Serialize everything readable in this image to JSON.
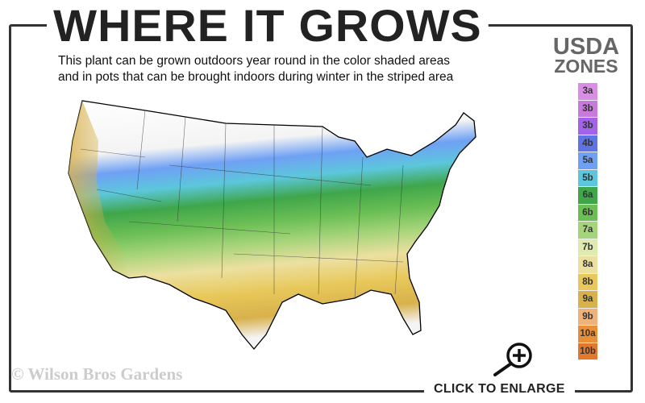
{
  "title": "WHERE IT GROWS",
  "subtitle": {
    "line1": "This plant can be grown outdoors year round in the color shaded areas",
    "line2": "and in pots that can be brought indoors during winter in the striped area"
  },
  "legend": {
    "title_line1": "USDA",
    "title_line2": "ZONES",
    "zones": [
      {
        "label": "3a",
        "color": "#d98ee6"
      },
      {
        "label": "3b",
        "color": "#c77ad9"
      },
      {
        "label": "3b",
        "color": "#a262ea"
      },
      {
        "label": "4b",
        "color": "#5d73e6"
      },
      {
        "label": "5a",
        "color": "#6fa0f4"
      },
      {
        "label": "5b",
        "color": "#5cc7dc"
      },
      {
        "label": "6a",
        "color": "#3fa64a"
      },
      {
        "label": "6b",
        "color": "#6cbf55"
      },
      {
        "label": "7a",
        "color": "#a6d47a"
      },
      {
        "label": "7b",
        "color": "#dfeab0"
      },
      {
        "label": "8a",
        "color": "#ece0a0"
      },
      {
        "label": "8b",
        "color": "#e8c85a"
      },
      {
        "label": "9a",
        "color": "#d8b14c"
      },
      {
        "label": "9b",
        "color": "#efb27a"
      },
      {
        "label": "10a",
        "color": "#e98f37"
      },
      {
        "label": "10b",
        "color": "#e3772c"
      }
    ]
  },
  "copyright": "© Wilson Bros Gardens",
  "enlarge_label": "CLICK TO ENLARGE",
  "icons": {
    "enlarge": "magnifier-plus-icon"
  }
}
